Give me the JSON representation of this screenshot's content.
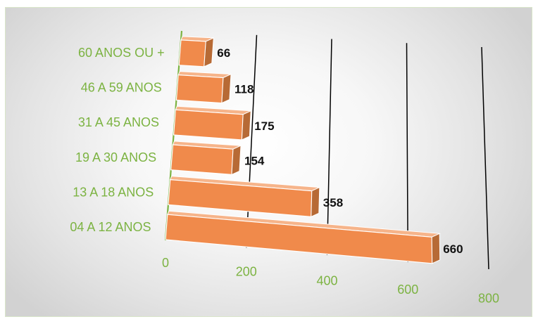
{
  "chart_data": {
    "type": "bar",
    "orientation": "horizontal",
    "style": "3d",
    "categories": [
      "04 A 12 ANOS",
      "13 A 18 ANOS",
      "19 A 30 ANOS",
      "31 A 45 ANOS",
      "46 A 59 ANOS",
      "60 ANOS OU +"
    ],
    "values": [
      660,
      358,
      154,
      175,
      118,
      66
    ],
    "value_labels": [
      "660",
      "358",
      "154",
      "175",
      "118",
      "66"
    ],
    "xticks": [
      "0",
      "200",
      "400",
      "600",
      "800"
    ],
    "xlim": [
      0,
      800
    ],
    "grid": true,
    "legend": "none",
    "title": "",
    "xlabel": "",
    "ylabel": ""
  },
  "colors": {
    "bar_front": "#f08a4b",
    "bar_top": "#f6b48a",
    "bar_side": "#b76a35",
    "bar_edge": "#ffffff",
    "axis_green": "#7cb342",
    "gridline": "#000000",
    "value_text": "#111111"
  }
}
